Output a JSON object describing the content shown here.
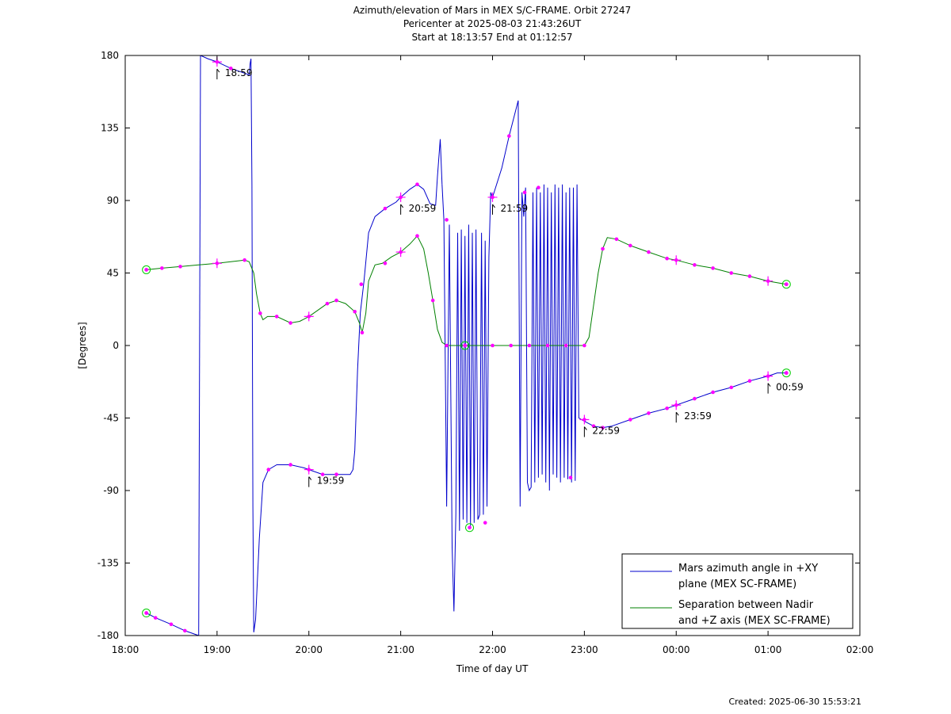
{
  "chart_data": {
    "type": "line",
    "title_lines": [
      "Azimuth/elevation of Mars in MEX S/C-FRAME.  Orbit 27247",
      "Pericenter at 2025-08-03 21:43:26UT",
      "Start at 18:13:57 End at 01:12:57"
    ],
    "xlabel": "Time of day UT",
    "ylabel": "[Degrees]",
    "xlim": [
      18,
      26
    ],
    "ylim": [
      -180,
      180
    ],
    "x_ticks": [
      {
        "v": 18,
        "label": "18:00"
      },
      {
        "v": 19,
        "label": "19:00"
      },
      {
        "v": 20,
        "label": "20:00"
      },
      {
        "v": 21,
        "label": "21:00"
      },
      {
        "v": 22,
        "label": "22:00"
      },
      {
        "v": 23,
        "label": "23:00"
      },
      {
        "v": 24,
        "label": "00:00"
      },
      {
        "v": 25,
        "label": "01:00"
      },
      {
        "v": 26,
        "label": "02:00"
      }
    ],
    "y_ticks": [
      {
        "v": 180,
        "label": "180"
      },
      {
        "v": 135,
        "label": "135"
      },
      {
        "v": 90,
        "label": "90"
      },
      {
        "v": 45,
        "label": "45"
      },
      {
        "v": 0,
        "label": "0"
      },
      {
        "v": -45,
        "label": "-45"
      },
      {
        "v": -90,
        "label": "-90"
      },
      {
        "v": -135,
        "label": "-135"
      },
      {
        "v": -180,
        "label": "-180"
      }
    ],
    "legend_position": "bottom-right",
    "legend": [
      {
        "color": "#0000cc",
        "lines": [
          "Mars azimuth angle in +XY",
          "plane (MEX SC-FRAME)"
        ]
      },
      {
        "color": "#008000",
        "lines": [
          "Separation between Nadir",
          "and +Z axis (MEX SC-FRAME)"
        ]
      }
    ],
    "series": [
      {
        "color": "#0000cc",
        "segments": [
          [
            [
              18.23,
              -166
            ],
            [
              18.33,
              -169
            ],
            [
              18.5,
              -173
            ],
            [
              18.65,
              -177
            ],
            [
              18.8,
              -180
            ]
          ],
          [
            [
              18.8,
              -180
            ],
            [
              18.82,
              180
            ]
          ],
          [
            [
              18.82,
              180
            ],
            [
              18.9,
              178
            ],
            [
              19.0,
              176
            ],
            [
              19.15,
              172
            ],
            [
              19.25,
              170
            ],
            [
              19.35,
              168
            ],
            [
              19.36,
              175
            ],
            [
              19.37,
              178
            ],
            [
              19.38,
              100
            ],
            [
              19.39,
              -100
            ],
            [
              19.4,
              -178
            ],
            [
              19.42,
              -170
            ],
            [
              19.46,
              -120
            ],
            [
              19.5,
              -85
            ],
            [
              19.56,
              -77
            ],
            [
              19.65,
              -74
            ],
            [
              19.8,
              -74
            ],
            [
              19.95,
              -76
            ],
            [
              20.0,
              -77
            ],
            [
              20.15,
              -80
            ],
            [
              20.3,
              -80
            ],
            [
              20.45,
              -80
            ],
            [
              20.48,
              -77
            ],
            [
              20.5,
              -65
            ],
            [
              20.53,
              -15
            ],
            [
              20.56,
              20
            ],
            [
              20.6,
              40
            ],
            [
              20.65,
              70
            ],
            [
              20.72,
              80
            ],
            [
              20.83,
              85
            ],
            [
              20.95,
              89
            ],
            [
              21.0,
              92
            ],
            [
              21.1,
              97
            ],
            [
              21.18,
              100
            ],
            [
              21.25,
              97
            ],
            [
              21.32,
              88
            ],
            [
              21.38,
              87
            ],
            [
              21.4,
              105
            ],
            [
              21.43,
              128
            ],
            [
              21.45,
              100
            ]
          ],
          [
            [
              21.45,
              100
            ],
            [
              21.47,
              78
            ],
            [
              21.5,
              -100
            ],
            [
              21.53,
              75
            ],
            [
              21.56,
              -125
            ],
            [
              21.58,
              -165
            ],
            [
              21.6,
              -105
            ],
            [
              21.62,
              70
            ],
            [
              21.64,
              -115
            ],
            [
              21.66,
              72
            ],
            [
              21.68,
              -108
            ],
            [
              21.7,
              68
            ],
            [
              21.72,
              -110
            ],
            [
              21.74,
              75
            ],
            [
              21.76,
              -112
            ],
            [
              21.78,
              70
            ],
            [
              21.8,
              -110
            ],
            [
              21.82,
              72
            ],
            [
              21.84,
              -108
            ],
            [
              21.86,
              -105
            ],
            [
              21.88,
              70
            ],
            [
              21.9,
              -105
            ],
            [
              21.92,
              65
            ],
            [
              21.94,
              -100
            ],
            [
              21.96,
              55
            ],
            [
              21.98,
              95
            ],
            [
              22.0,
              92
            ],
            [
              22.1,
              110
            ],
            [
              22.18,
              130
            ],
            [
              22.28,
              152
            ],
            [
              22.3,
              -100
            ],
            [
              22.32,
              95
            ],
            [
              22.34,
              80
            ],
            [
              22.36,
              98
            ],
            [
              22.38,
              -85
            ],
            [
              22.4,
              -90
            ],
            [
              22.42,
              -88
            ],
            [
              22.44,
              95
            ],
            [
              22.46,
              -85
            ],
            [
              22.48,
              98
            ],
            [
              22.5,
              -82
            ],
            [
              22.52,
              95
            ],
            [
              22.54,
              -80
            ],
            [
              22.56,
              100
            ],
            [
              22.58,
              -85
            ],
            [
              22.6,
              98
            ],
            [
              22.62,
              -90
            ],
            [
              22.64,
              95
            ],
            [
              22.66,
              -80
            ],
            [
              22.68,
              100
            ],
            [
              22.7,
              -82
            ],
            [
              22.72,
              98
            ],
            [
              22.74,
              -85
            ],
            [
              22.76,
              100
            ],
            [
              22.78,
              -82
            ],
            [
              22.8,
              95
            ],
            [
              22.82,
              -83
            ],
            [
              22.84,
              98
            ],
            [
              22.86,
              -85
            ],
            [
              22.88,
              98
            ],
            [
              22.9,
              -84
            ],
            [
              22.92,
              100
            ],
            [
              22.94,
              -45
            ],
            [
              23.0,
              -47
            ],
            [
              23.1,
              -50
            ],
            [
              23.2,
              -51
            ],
            [
              23.3,
              -50
            ],
            [
              23.5,
              -46
            ],
            [
              23.7,
              -42
            ],
            [
              23.9,
              -39
            ],
            [
              24.0,
              -37
            ],
            [
              24.2,
              -33
            ],
            [
              24.4,
              -29
            ],
            [
              24.6,
              -26
            ],
            [
              24.8,
              -22
            ],
            [
              25.0,
              -19
            ],
            [
              25.1,
              -17
            ],
            [
              25.2,
              -17
            ]
          ]
        ]
      },
      {
        "color": "#008000",
        "segments": [
          [
            [
              18.23,
              47
            ],
            [
              18.4,
              48
            ],
            [
              18.6,
              49
            ],
            [
              18.8,
              50
            ],
            [
              19.0,
              51
            ],
            [
              19.15,
              52
            ],
            [
              19.3,
              53
            ],
            [
              19.35,
              52
            ],
            [
              19.4,
              45
            ],
            [
              19.43,
              32
            ],
            [
              19.47,
              20
            ],
            [
              19.5,
              16
            ],
            [
              19.55,
              18
            ],
            [
              19.65,
              18
            ],
            [
              19.8,
              14
            ],
            [
              19.9,
              15
            ],
            [
              20.0,
              18
            ],
            [
              20.1,
              22
            ],
            [
              20.2,
              26
            ],
            [
              20.3,
              28
            ],
            [
              20.4,
              26
            ],
            [
              20.5,
              21
            ],
            [
              20.55,
              14
            ],
            [
              20.58,
              8
            ],
            [
              20.62,
              20
            ],
            [
              20.65,
              40
            ],
            [
              20.72,
              50
            ],
            [
              20.8,
              51
            ],
            [
              20.9,
              55
            ],
            [
              21.0,
              58
            ],
            [
              21.1,
              63
            ],
            [
              21.18,
              68
            ],
            [
              21.25,
              60
            ],
            [
              21.3,
              45
            ],
            [
              21.35,
              28
            ],
            [
              21.4,
              10
            ],
            [
              21.45,
              2
            ],
            [
              21.5,
              0
            ],
            [
              21.6,
              0
            ],
            [
              21.7,
              0
            ],
            [
              21.8,
              0
            ],
            [
              21.9,
              0
            ],
            [
              22.0,
              0
            ],
            [
              22.2,
              0
            ],
            [
              22.4,
              0
            ],
            [
              22.6,
              0
            ],
            [
              22.8,
              0
            ],
            [
              23.0,
              0
            ],
            [
              23.05,
              5
            ],
            [
              23.1,
              25
            ],
            [
              23.15,
              45
            ],
            [
              23.2,
              60
            ],
            [
              23.25,
              67
            ],
            [
              23.35,
              66
            ],
            [
              23.5,
              62
            ],
            [
              23.7,
              58
            ],
            [
              23.9,
              54
            ],
            [
              24.0,
              53
            ],
            [
              24.2,
              50
            ],
            [
              24.4,
              48
            ],
            [
              24.6,
              45
            ],
            [
              24.8,
              43
            ],
            [
              25.0,
              40
            ],
            [
              25.1,
              39
            ],
            [
              25.2,
              38
            ]
          ]
        ]
      }
    ],
    "magenta_markers": [
      [
        18.23,
        -166
      ],
      [
        18.33,
        -169
      ],
      [
        18.5,
        -173
      ],
      [
        18.65,
        -177
      ],
      [
        19.0,
        176
      ],
      [
        19.15,
        172
      ],
      [
        19.56,
        -77
      ],
      [
        19.8,
        -74
      ],
      [
        20.0,
        -77
      ],
      [
        20.15,
        -80
      ],
      [
        20.3,
        -80
      ],
      [
        20.57,
        38
      ],
      [
        20.83,
        85
      ],
      [
        21.0,
        92
      ],
      [
        21.18,
        100
      ],
      [
        21.5,
        78
      ],
      [
        21.92,
        -110
      ],
      [
        22.0,
        92
      ],
      [
        22.18,
        130
      ],
      [
        22.35,
        95
      ],
      [
        22.5,
        98
      ],
      [
        22.85,
        -82
      ],
      [
        23.0,
        -46
      ],
      [
        23.1,
        -50
      ],
      [
        23.2,
        -51
      ],
      [
        23.5,
        -46
      ],
      [
        23.7,
        -42
      ],
      [
        23.9,
        -39
      ],
      [
        24.0,
        -37
      ],
      [
        24.2,
        -33
      ],
      [
        24.4,
        -29
      ],
      [
        24.6,
        -26
      ],
      [
        24.8,
        -22
      ],
      [
        25.0,
        -19
      ],
      [
        25.2,
        -17
      ],
      [
        18.23,
        47
      ],
      [
        18.4,
        48
      ],
      [
        18.6,
        49
      ],
      [
        19.0,
        51
      ],
      [
        19.3,
        53
      ],
      [
        19.47,
        20
      ],
      [
        19.65,
        18
      ],
      [
        19.8,
        14
      ],
      [
        20.0,
        18
      ],
      [
        20.2,
        26
      ],
      [
        20.3,
        28
      ],
      [
        20.5,
        21
      ],
      [
        20.58,
        8
      ],
      [
        20.83,
        51
      ],
      [
        21.0,
        58
      ],
      [
        21.18,
        68
      ],
      [
        21.35,
        28
      ],
      [
        21.5,
        0
      ],
      [
        21.7,
        0
      ],
      [
        22.0,
        0
      ],
      [
        22.2,
        0
      ],
      [
        22.4,
        0
      ],
      [
        22.6,
        0
      ],
      [
        22.8,
        0
      ],
      [
        23.0,
        0
      ],
      [
        23.2,
        60
      ],
      [
        23.35,
        66
      ],
      [
        23.5,
        62
      ],
      [
        23.7,
        58
      ],
      [
        23.9,
        54
      ],
      [
        24.0,
        53
      ],
      [
        24.2,
        50
      ],
      [
        24.4,
        48
      ],
      [
        24.6,
        45
      ],
      [
        24.8,
        43
      ],
      [
        25.0,
        40
      ],
      [
        25.2,
        38
      ]
    ],
    "hour_crosses": [
      [
        19.0,
        176
      ],
      [
        20.0,
        -77
      ],
      [
        21.0,
        92
      ],
      [
        22.0,
        92
      ],
      [
        23.0,
        -46
      ],
      [
        24.0,
        -37
      ],
      [
        25.0,
        -19
      ],
      [
        19.0,
        51
      ],
      [
        20.0,
        18
      ],
      [
        21.0,
        58
      ],
      [
        24.0,
        53
      ],
      [
        25.0,
        40
      ]
    ],
    "green_circles": [
      [
        18.23,
        -166
      ],
      [
        18.23,
        47
      ],
      [
        21.7,
        0
      ],
      [
        21.75,
        -113
      ],
      [
        25.2,
        38
      ],
      [
        25.2,
        -17
      ]
    ],
    "time_labels": [
      {
        "x": 19.0,
        "y": 176,
        "label": "18:59"
      },
      {
        "x": 20.0,
        "y": -77,
        "label": "19:59"
      },
      {
        "x": 21.0,
        "y": 92,
        "label": "20:59"
      },
      {
        "x": 22.0,
        "y": 92,
        "label": "21:59"
      },
      {
        "x": 23.0,
        "y": -46,
        "label": "22:59"
      },
      {
        "x": 24.0,
        "y": -37,
        "label": "23:59"
      },
      {
        "x": 25.0,
        "y": -19,
        "label": "00:59"
      }
    ]
  },
  "footer": {
    "created": "Created: 2025-06-30 15:53:21"
  }
}
